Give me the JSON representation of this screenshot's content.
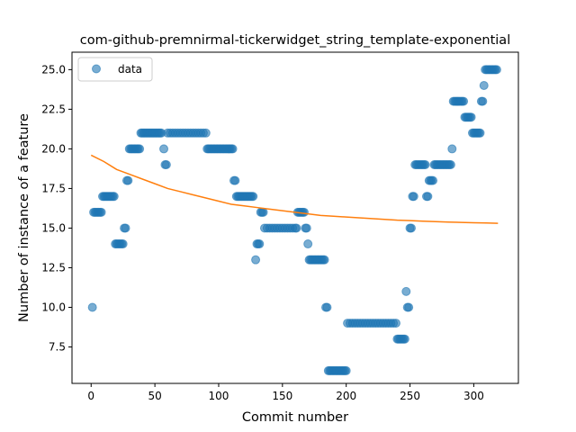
{
  "chart_data": {
    "type": "scatter",
    "title": "com-github-premnirmal-tickerwidget_string_template-exponential",
    "xlabel": "Commit number",
    "ylabel": "Number of instance of a feature",
    "xlim": [
      -15,
      335
    ],
    "ylim": [
      5.2,
      26.1
    ],
    "x_ticks": [
      0,
      50,
      100,
      150,
      200,
      250,
      300
    ],
    "y_ticks": [
      7.5,
      10.0,
      12.5,
      15.0,
      17.5,
      20.0,
      22.5,
      25.0
    ],
    "x_tick_labels": [
      "0",
      "50",
      "100",
      "150",
      "200",
      "250",
      "300"
    ],
    "y_tick_labels": [
      "7.5",
      "10.0",
      "12.5",
      "15.0",
      "17.5",
      "20.0",
      "22.5",
      "25.0"
    ],
    "legend": {
      "position": "top-left",
      "entries": [
        "data"
      ]
    },
    "grid": false,
    "colors": {
      "scatter": "#1f77b4",
      "fit": "#ff7f0e"
    },
    "series": [
      {
        "name": "data",
        "type": "scatter",
        "points": [
          [
            1,
            10
          ],
          [
            2,
            16
          ],
          [
            3,
            16
          ],
          [
            4,
            16
          ],
          [
            5,
            16
          ],
          [
            6,
            16
          ],
          [
            7,
            16
          ],
          [
            8,
            16
          ],
          [
            9,
            17
          ],
          [
            10,
            17
          ],
          [
            11,
            17
          ],
          [
            12,
            17
          ],
          [
            13,
            17
          ],
          [
            14,
            17
          ],
          [
            15,
            17
          ],
          [
            16,
            17
          ],
          [
            17,
            17
          ],
          [
            18,
            17
          ],
          [
            19,
            14
          ],
          [
            20,
            14
          ],
          [
            21,
            14
          ],
          [
            22,
            14
          ],
          [
            23,
            14
          ],
          [
            24,
            14
          ],
          [
            25,
            14
          ],
          [
            26,
            15
          ],
          [
            27,
            15
          ],
          [
            28,
            18
          ],
          [
            29,
            18
          ],
          [
            30,
            20
          ],
          [
            31,
            20
          ],
          [
            32,
            20
          ],
          [
            33,
            20
          ],
          [
            34,
            20
          ],
          [
            35,
            20
          ],
          [
            36,
            20
          ],
          [
            37,
            20
          ],
          [
            38,
            20
          ],
          [
            39,
            21
          ],
          [
            40,
            21
          ],
          [
            41,
            21
          ],
          [
            42,
            21
          ],
          [
            43,
            21
          ],
          [
            44,
            21
          ],
          [
            45,
            21
          ],
          [
            46,
            21
          ],
          [
            47,
            21
          ],
          [
            48,
            21
          ],
          [
            49,
            21
          ],
          [
            50,
            21
          ],
          [
            51,
            21
          ],
          [
            52,
            21
          ],
          [
            53,
            21
          ],
          [
            54,
            21
          ],
          [
            55,
            21
          ],
          [
            57,
            20
          ],
          [
            58,
            19
          ],
          [
            59,
            19
          ],
          [
            60,
            21
          ],
          [
            62,
            21
          ],
          [
            64,
            21
          ],
          [
            66,
            21
          ],
          [
            68,
            21
          ],
          [
            70,
            21
          ],
          [
            72,
            21
          ],
          [
            74,
            21
          ],
          [
            76,
            21
          ],
          [
            78,
            21
          ],
          [
            80,
            21
          ],
          [
            82,
            21
          ],
          [
            84,
            21
          ],
          [
            86,
            21
          ],
          [
            88,
            21
          ],
          [
            90,
            21
          ],
          [
            91,
            20
          ],
          [
            92,
            20
          ],
          [
            93,
            20
          ],
          [
            94,
            20
          ],
          [
            95,
            20
          ],
          [
            96,
            20
          ],
          [
            97,
            20
          ],
          [
            98,
            20
          ],
          [
            99,
            20
          ],
          [
            100,
            20
          ],
          [
            101,
            20
          ],
          [
            102,
            20
          ],
          [
            103,
            20
          ],
          [
            104,
            20
          ],
          [
            105,
            20
          ],
          [
            106,
            20
          ],
          [
            107,
            20
          ],
          [
            108,
            20
          ],
          [
            109,
            20
          ],
          [
            110,
            20
          ],
          [
            111,
            20
          ],
          [
            112,
            18
          ],
          [
            113,
            18
          ],
          [
            114,
            17
          ],
          [
            115,
            17
          ],
          [
            116,
            17
          ],
          [
            117,
            17
          ],
          [
            118,
            17
          ],
          [
            119,
            17
          ],
          [
            120,
            17
          ],
          [
            121,
            17
          ],
          [
            122,
            17
          ],
          [
            123,
            17
          ],
          [
            124,
            17
          ],
          [
            125,
            17
          ],
          [
            126,
            17
          ],
          [
            127,
            17
          ],
          [
            129,
            13
          ],
          [
            130,
            14
          ],
          [
            131,
            14
          ],
          [
            132,
            14
          ],
          [
            133,
            16
          ],
          [
            134,
            16
          ],
          [
            135,
            16
          ],
          [
            136,
            15
          ],
          [
            138,
            15
          ],
          [
            140,
            15
          ],
          [
            142,
            15
          ],
          [
            144,
            15
          ],
          [
            146,
            15
          ],
          [
            148,
            15
          ],
          [
            150,
            15
          ],
          [
            152,
            15
          ],
          [
            154,
            15
          ],
          [
            156,
            15
          ],
          [
            158,
            15
          ],
          [
            160,
            15
          ],
          [
            161,
            15
          ],
          [
            162,
            16
          ],
          [
            163,
            16
          ],
          [
            164,
            16
          ],
          [
            165,
            16
          ],
          [
            166,
            16
          ],
          [
            167,
            16
          ],
          [
            168,
            15
          ],
          [
            169,
            15
          ],
          [
            170,
            14
          ],
          [
            171,
            13
          ],
          [
            172,
            13
          ],
          [
            173,
            13
          ],
          [
            174,
            13
          ],
          [
            175,
            13
          ],
          [
            176,
            13
          ],
          [
            177,
            13
          ],
          [
            178,
            13
          ],
          [
            179,
            13
          ],
          [
            180,
            13
          ],
          [
            181,
            13
          ],
          [
            182,
            13
          ],
          [
            183,
            13
          ],
          [
            184,
            10
          ],
          [
            185,
            10
          ],
          [
            186,
            6
          ],
          [
            187,
            6
          ],
          [
            188,
            6
          ],
          [
            189,
            6
          ],
          [
            190,
            6
          ],
          [
            191,
            6
          ],
          [
            192,
            6
          ],
          [
            193,
            6
          ],
          [
            194,
            6
          ],
          [
            195,
            6
          ],
          [
            196,
            6
          ],
          [
            197,
            6
          ],
          [
            198,
            6
          ],
          [
            199,
            6
          ],
          [
            200,
            6
          ],
          [
            201,
            9
          ],
          [
            203,
            9
          ],
          [
            205,
            9
          ],
          [
            207,
            9
          ],
          [
            209,
            9
          ],
          [
            211,
            9
          ],
          [
            213,
            9
          ],
          [
            215,
            9
          ],
          [
            217,
            9
          ],
          [
            219,
            9
          ],
          [
            221,
            9
          ],
          [
            223,
            9
          ],
          [
            225,
            9
          ],
          [
            227,
            9
          ],
          [
            229,
            9
          ],
          [
            231,
            9
          ],
          [
            233,
            9
          ],
          [
            235,
            9
          ],
          [
            237,
            9
          ],
          [
            239,
            9
          ],
          [
            240,
            8
          ],
          [
            241,
            8
          ],
          [
            242,
            8
          ],
          [
            243,
            8
          ],
          [
            244,
            8
          ],
          [
            245,
            8
          ],
          [
            246,
            8
          ],
          [
            247,
            11
          ],
          [
            248,
            10
          ],
          [
            249,
            10
          ],
          [
            250,
            15
          ],
          [
            251,
            15
          ],
          [
            252,
            17
          ],
          [
            253,
            17
          ],
          [
            254,
            19
          ],
          [
            255,
            19
          ],
          [
            256,
            19
          ],
          [
            257,
            19
          ],
          [
            258,
            19
          ],
          [
            259,
            19
          ],
          [
            260,
            19
          ],
          [
            261,
            19
          ],
          [
            262,
            19
          ],
          [
            263,
            17
          ],
          [
            264,
            17
          ],
          [
            265,
            18
          ],
          [
            266,
            18
          ],
          [
            267,
            18
          ],
          [
            268,
            18
          ],
          [
            269,
            19
          ],
          [
            270,
            19
          ],
          [
            271,
            19
          ],
          [
            272,
            19
          ],
          [
            273,
            19
          ],
          [
            274,
            19
          ],
          [
            275,
            19
          ],
          [
            276,
            19
          ],
          [
            277,
            19
          ],
          [
            278,
            19
          ],
          [
            279,
            19
          ],
          [
            280,
            19
          ],
          [
            281,
            19
          ],
          [
            282,
            19
          ],
          [
            283,
            20
          ],
          [
            284,
            23
          ],
          [
            285,
            23
          ],
          [
            286,
            23
          ],
          [
            287,
            23
          ],
          [
            288,
            23
          ],
          [
            289,
            23
          ],
          [
            290,
            23
          ],
          [
            291,
            23
          ],
          [
            292,
            23
          ],
          [
            293,
            22
          ],
          [
            294,
            22
          ],
          [
            295,
            22
          ],
          [
            296,
            22
          ],
          [
            297,
            22
          ],
          [
            298,
            22
          ],
          [
            299,
            21
          ],
          [
            300,
            21
          ],
          [
            301,
            21
          ],
          [
            302,
            21
          ],
          [
            303,
            21
          ],
          [
            304,
            21
          ],
          [
            305,
            21
          ],
          [
            306,
            23
          ],
          [
            307,
            23
          ],
          [
            308,
            24
          ],
          [
            309,
            25
          ],
          [
            310,
            25
          ],
          [
            311,
            25
          ],
          [
            312,
            25
          ],
          [
            313,
            25
          ],
          [
            314,
            25
          ],
          [
            315,
            25
          ],
          [
            316,
            25
          ],
          [
            317,
            25
          ],
          [
            318,
            25
          ]
        ]
      },
      {
        "type": "line",
        "points": [
          [
            0,
            19.6
          ],
          [
            10,
            19.2
          ],
          [
            20,
            18.7
          ],
          [
            30,
            18.4
          ],
          [
            40,
            18.1
          ],
          [
            50,
            17.8
          ],
          [
            60,
            17.5
          ],
          [
            70,
            17.3
          ],
          [
            80,
            17.1
          ],
          [
            90,
            16.9
          ],
          [
            100,
            16.7
          ],
          [
            110,
            16.5
          ],
          [
            120,
            16.4
          ],
          [
            130,
            16.3
          ],
          [
            140,
            16.2
          ],
          [
            150,
            16.1
          ],
          [
            160,
            16.0
          ],
          [
            170,
            15.9
          ],
          [
            180,
            15.8
          ],
          [
            190,
            15.75
          ],
          [
            200,
            15.7
          ],
          [
            210,
            15.65
          ],
          [
            220,
            15.6
          ],
          [
            230,
            15.55
          ],
          [
            240,
            15.5
          ],
          [
            250,
            15.47
          ],
          [
            260,
            15.44
          ],
          [
            270,
            15.41
          ],
          [
            280,
            15.38
          ],
          [
            290,
            15.36
          ],
          [
            300,
            15.34
          ],
          [
            310,
            15.32
          ],
          [
            319,
            15.3
          ]
        ]
      }
    ]
  }
}
